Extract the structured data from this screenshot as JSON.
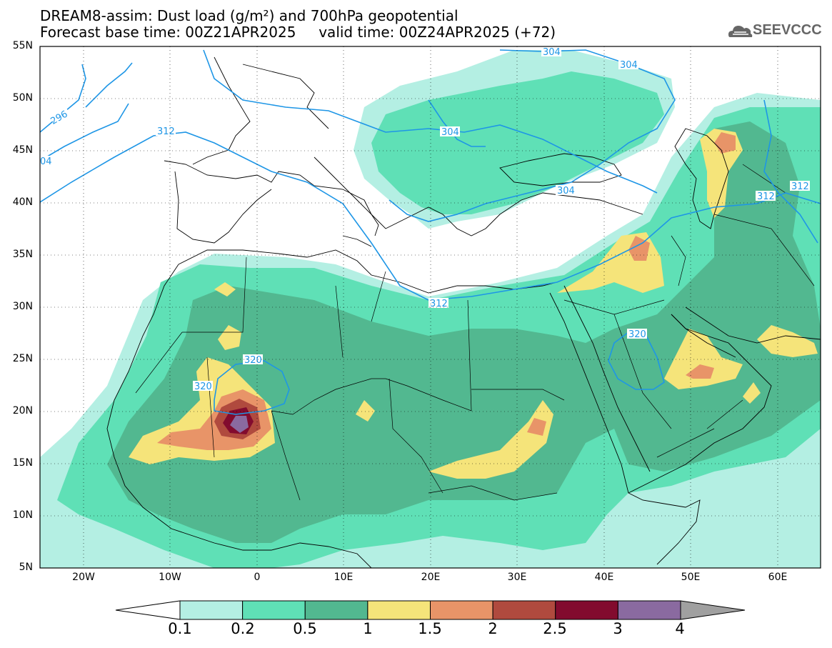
{
  "title": {
    "line1": "DREAM8-assim: Dust load (g/m²) and 700hPa geopotential",
    "line2": "Forecast base time: 00Z21APR2025     valid time: 00Z24APR2025 (+72)"
  },
  "logo": {
    "text": "SEEVCCC",
    "icon": "cloud-icon"
  },
  "map": {
    "lat_labels": [
      "55N",
      "50N",
      "45N",
      "40N",
      "35N",
      "30N",
      "25N",
      "20N",
      "15N",
      "10N",
      "5N"
    ],
    "lon_labels": [
      "20W",
      "10W",
      "0",
      "10E",
      "20E",
      "30E",
      "40E",
      "50E",
      "60E"
    ],
    "lat_range": [
      5,
      55
    ],
    "lon_range": [
      -25,
      65
    ],
    "contour_labels": [
      "304",
      "304",
      "304",
      "304",
      "312",
      "312",
      "312",
      "312",
      "320",
      "320",
      "296",
      "04"
    ],
    "contour_color": "#1e96e6"
  },
  "colorbar": {
    "labels": [
      "0.1",
      "0.2",
      "0.5",
      "1",
      "1.5",
      "2",
      "2.5",
      "3",
      "4"
    ],
    "colors": [
      "#b4efe3",
      "#5fe0b6",
      "#52b890",
      "#f5e47a",
      "#e89468",
      "#b04a3e",
      "#820b2e",
      "#8a6aa0"
    ],
    "low_color": "#ffffff",
    "high_color": "#a0a0a0"
  }
}
